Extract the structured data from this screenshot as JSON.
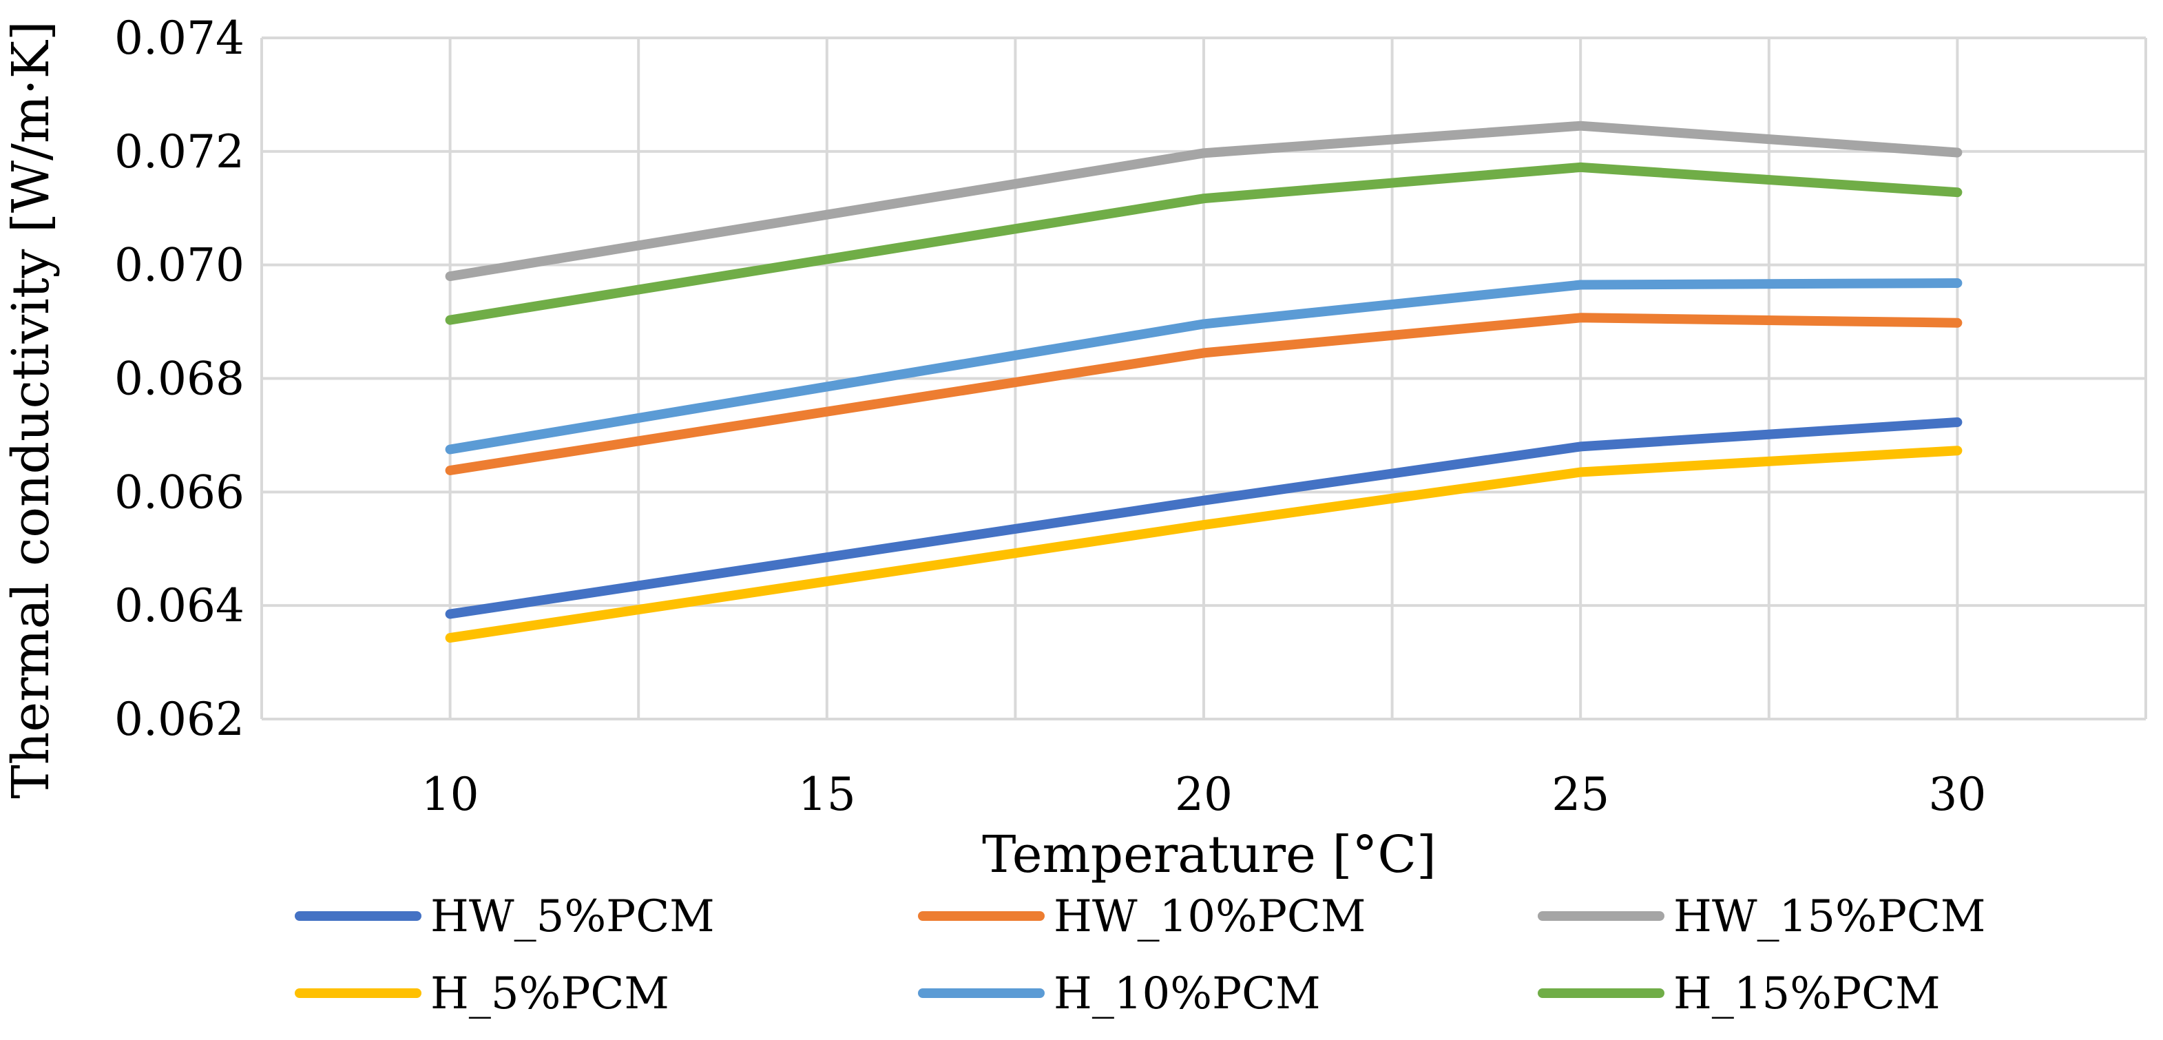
{
  "chart_data": {
    "type": "line",
    "title": "",
    "xlabel": "Temperature [°C]",
    "ylabel": "Thermal conductivity [W/m·K]",
    "x": [
      10,
      20,
      25,
      30
    ],
    "x_ticks": [
      10,
      15,
      20,
      25,
      30
    ],
    "x_tick_labels": [
      "10",
      "15",
      "20",
      "25",
      "30"
    ],
    "xlim": [
      7.5,
      32.5
    ],
    "ylim": [
      0.062,
      0.074
    ],
    "y_ticks": [
      0.062,
      0.064,
      0.066,
      0.068,
      0.07,
      0.072,
      0.074
    ],
    "y_tick_labels": [
      "0.062",
      "0.064",
      "0.066",
      "0.068",
      "0.070",
      "0.072",
      "0.074"
    ],
    "grid": true,
    "legend_position": "bottom",
    "series": [
      {
        "name": "HW_5%PCM",
        "color": "#4472C4",
        "values": [
          0.06385,
          0.06585,
          0.0668,
          0.06723
        ]
      },
      {
        "name": "HW_10%PCM",
        "color": "#ED7D31",
        "values": [
          0.06638,
          0.06845,
          0.06907,
          0.06898
        ]
      },
      {
        "name": "HW_15%PCM",
        "color": "#A5A5A5",
        "values": [
          0.0698,
          0.07197,
          0.07245,
          0.07198
        ]
      },
      {
        "name": "H_5%PCM",
        "color": "#FFC000",
        "values": [
          0.06343,
          0.06542,
          0.06635,
          0.06673
        ]
      },
      {
        "name": "H_10%PCM",
        "color": "#5B9BD5",
        "values": [
          0.06675,
          0.06896,
          0.06965,
          0.06968
        ]
      },
      {
        "name": "H_15%PCM",
        "color": "#70AD47",
        "values": [
          0.06903,
          0.07117,
          0.07172,
          0.07128
        ]
      }
    ]
  }
}
